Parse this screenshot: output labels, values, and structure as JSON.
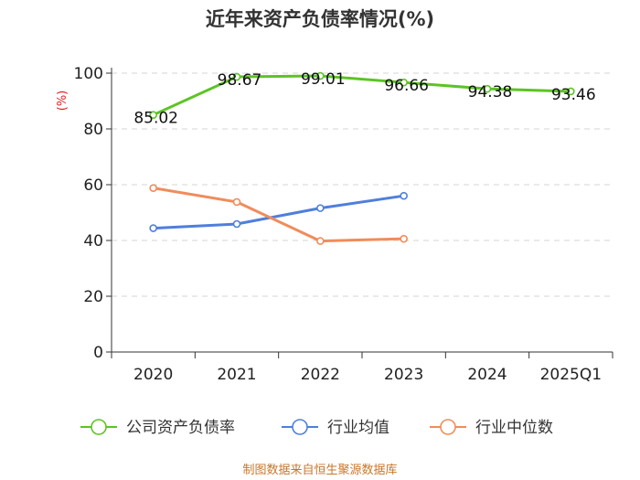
{
  "chart_data": {
    "type": "line",
    "title": "近年来资产负债率情况(%)",
    "ylabel": "(%)",
    "xlabel": "",
    "categories": [
      "2020",
      "2021",
      "2022",
      "2023",
      "2024",
      "2025Q1"
    ],
    "ylim": [
      0,
      100
    ],
    "yticks": [
      0,
      20,
      40,
      60,
      80,
      100
    ],
    "grid": "horizontal-dashed",
    "legend_position": "bottom",
    "series": [
      {
        "name": "公司资产负债率",
        "color": "#5cc424",
        "values": [
          85.02,
          98.67,
          99.01,
          96.66,
          94.38,
          93.46
        ],
        "labels": [
          "85.02",
          "98.67",
          "99.01",
          "96.66",
          "94.38",
          "93.46"
        ]
      },
      {
        "name": "行业均值",
        "color": "#4e7fdc",
        "values": [
          44.4,
          45.9,
          51.6,
          56.0,
          null,
          null
        ]
      },
      {
        "name": "行业中位数",
        "color": "#f08c5c",
        "values": [
          58.8,
          53.8,
          39.8,
          40.6,
          null,
          null
        ]
      }
    ]
  },
  "source": "制图数据来自恒生聚源数据库"
}
